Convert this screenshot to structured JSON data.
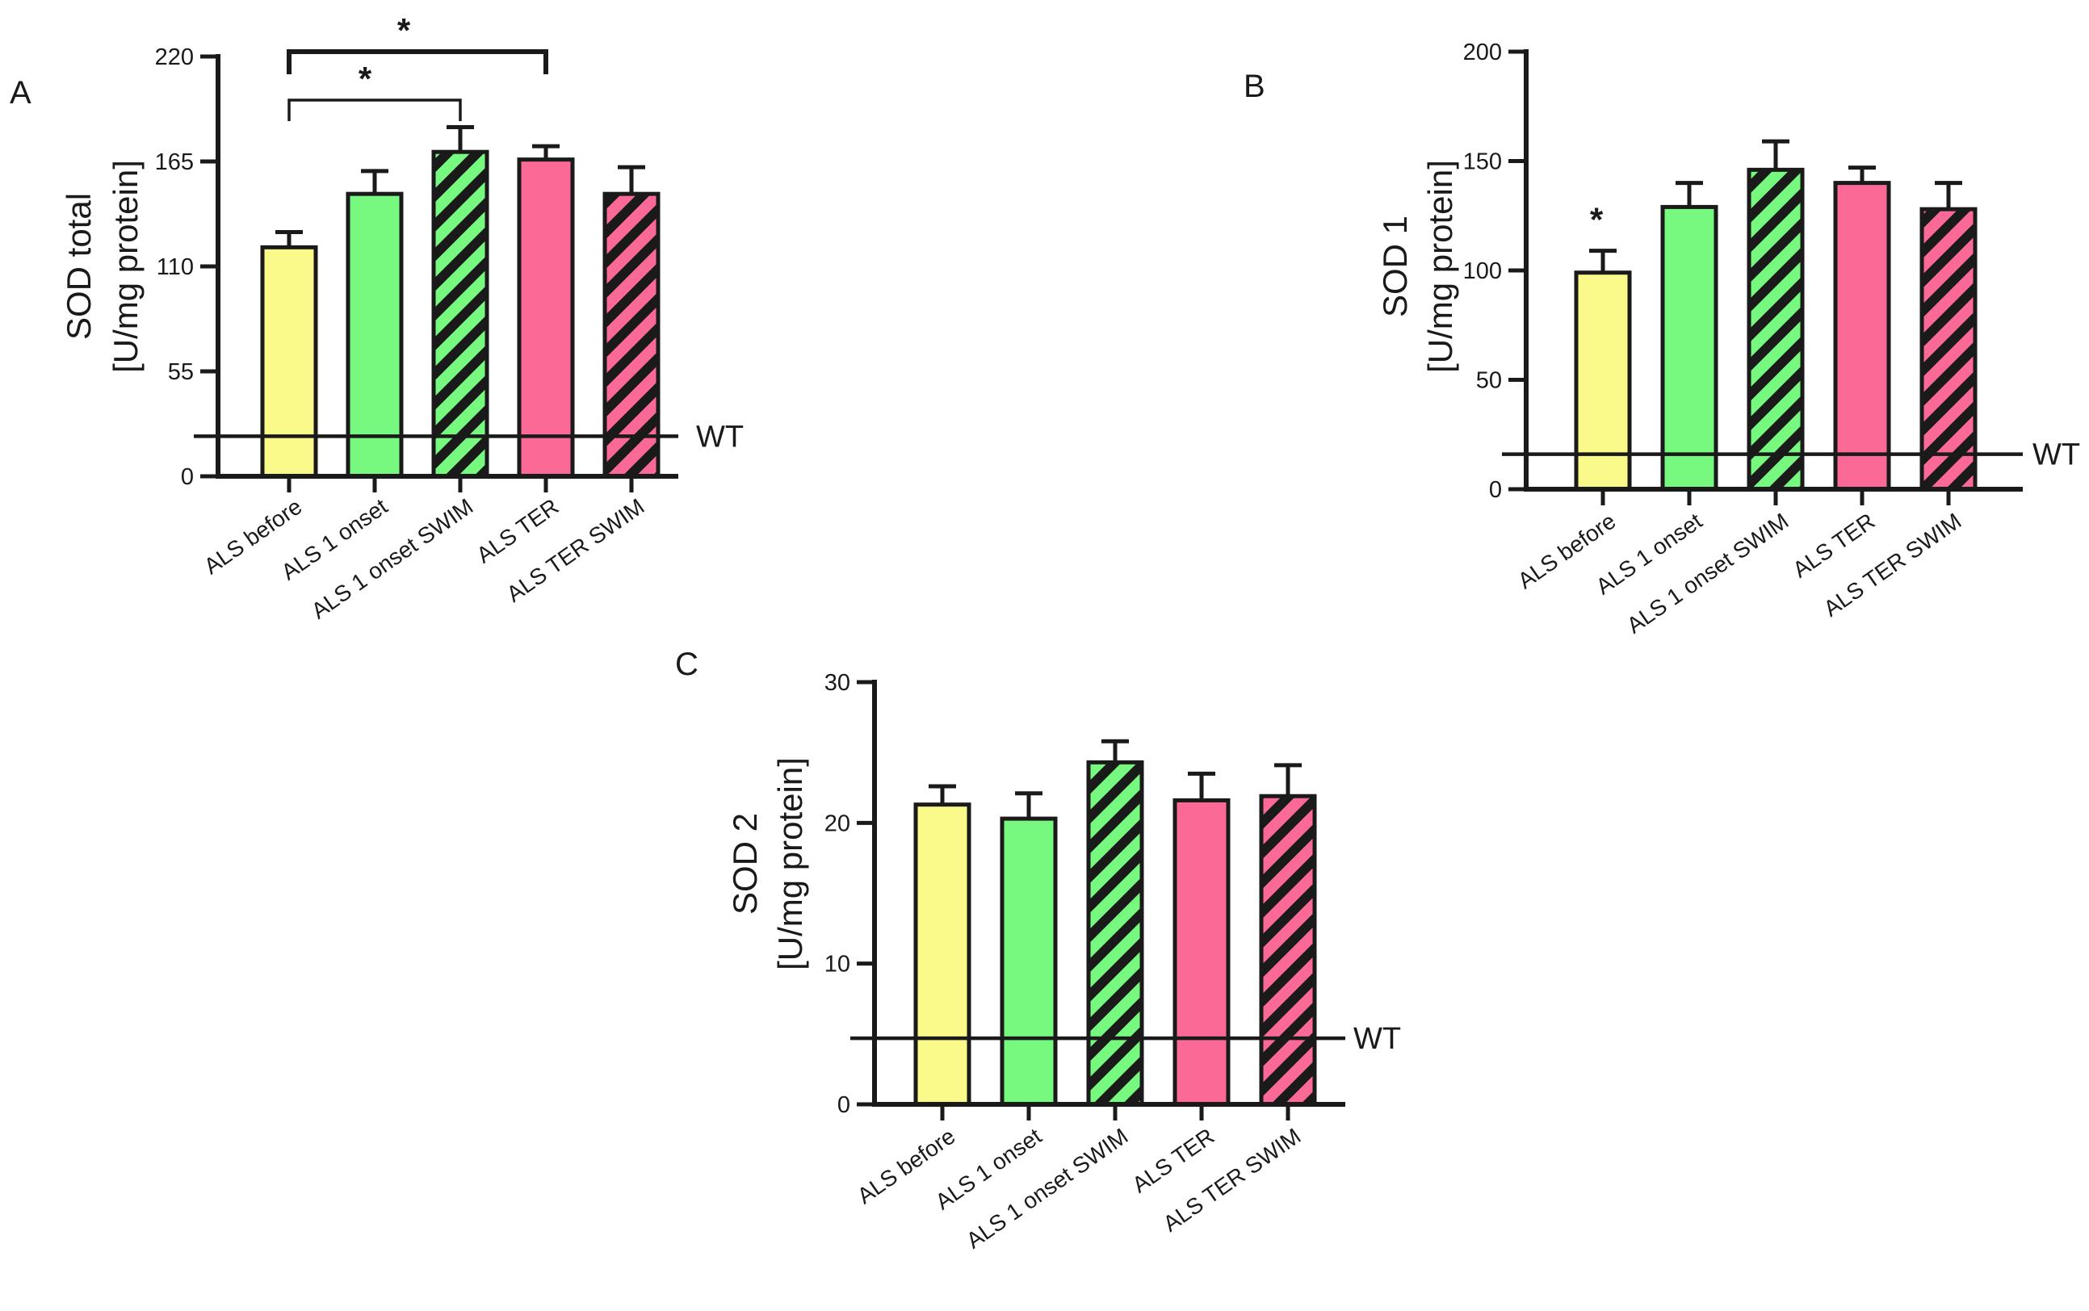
{
  "colors": {
    "yellow": "#fafa8a",
    "green": "#76f97e",
    "pink": "#fb6a96",
    "axis": "#1a1a1a"
  },
  "chart_data": [
    {
      "panel": "A",
      "type": "bar",
      "title": "",
      "ylabel_line1": "SOD total",
      "ylabel_line2": "[U/mg protein]",
      "xlabel": "",
      "ylim": [
        0,
        220
      ],
      "yticks": [
        0,
        55,
        110,
        165,
        220
      ],
      "categories": [
        "ALS before",
        "ALS 1 onset",
        "ALS 1 onset SWIM",
        "ALS TER",
        "ALS TER SWIM"
      ],
      "fills": [
        "yellow",
        "green",
        "green",
        "pink",
        "pink"
      ],
      "hatched": [
        false,
        false,
        true,
        false,
        true
      ],
      "values": [
        120,
        148,
        170,
        166,
        148
      ],
      "errors": [
        8,
        12,
        13,
        7,
        14
      ],
      "reference_line": {
        "label": "WT",
        "value": 21
      },
      "significance": [
        {
          "from": 0,
          "to": 2,
          "label": "*"
        },
        {
          "from": 0,
          "to": 3,
          "label": "*"
        }
      ],
      "bar_stars": []
    },
    {
      "panel": "B",
      "type": "bar",
      "title": "",
      "ylabel_line1": "SOD 1",
      "ylabel_line2": "[U/mg protein]",
      "xlabel": "",
      "ylim": [
        0,
        200
      ],
      "yticks": [
        0,
        50,
        100,
        150,
        200
      ],
      "categories": [
        "ALS before",
        "ALS 1 onset",
        "ALS 1 onset SWIM",
        "ALS TER",
        "ALS TER SWIM"
      ],
      "fills": [
        "yellow",
        "green",
        "green",
        "pink",
        "pink"
      ],
      "hatched": [
        false,
        false,
        true,
        false,
        true
      ],
      "values": [
        99,
        129,
        146,
        140,
        128
      ],
      "errors": [
        10,
        11,
        13,
        7,
        12
      ],
      "reference_line": {
        "label": "WT",
        "value": 16
      },
      "significance": [],
      "bar_stars": [
        {
          "index": 0,
          "label": "*"
        }
      ]
    },
    {
      "panel": "C",
      "type": "bar",
      "title": "",
      "ylabel_line1": "SOD 2",
      "ylabel_line2": "[U/mg protein]",
      "xlabel": "",
      "ylim": [
        0,
        30
      ],
      "yticks": [
        0,
        10,
        20,
        30
      ],
      "categories": [
        "ALS before",
        "ALS 1 onset",
        "ALS 1 onset SWIM",
        "ALS TER",
        "ALS TER SWIM"
      ],
      "fills": [
        "yellow",
        "green",
        "green",
        "pink",
        "pink"
      ],
      "hatched": [
        false,
        false,
        true,
        false,
        true
      ],
      "values": [
        21.3,
        20.3,
        24.3,
        21.6,
        21.9
      ],
      "errors": [
        1.3,
        1.8,
        1.5,
        1.9,
        2.2
      ],
      "reference_line": {
        "label": "WT",
        "value": 4.7
      },
      "significance": [],
      "bar_stars": []
    }
  ]
}
